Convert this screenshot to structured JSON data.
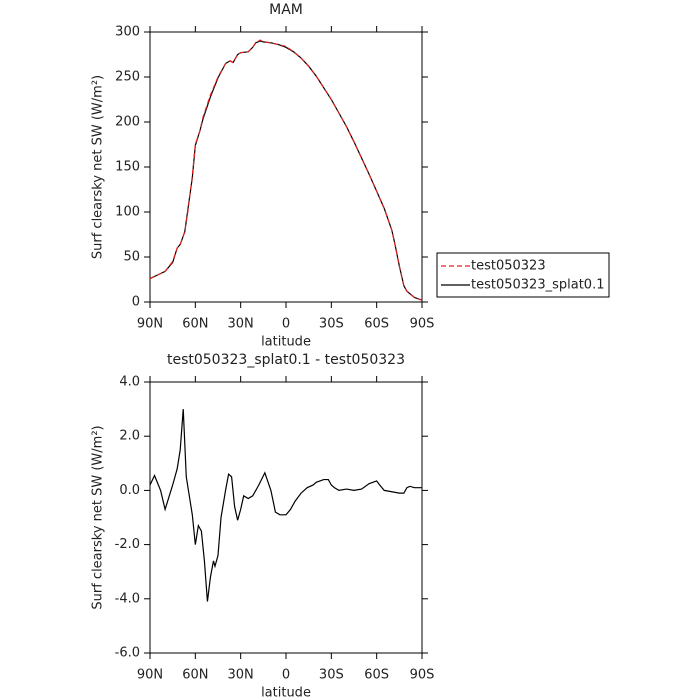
{
  "chart_data": [
    {
      "type": "line",
      "title": "MAM",
      "xlabel": "latitude",
      "ylabel": "Surf clearsky net SW (W/m²)",
      "xlim": [
        90,
        -90
      ],
      "ylim": [
        0,
        300
      ],
      "xticks": [
        {
          "value": 90,
          "label": "90N"
        },
        {
          "value": 60,
          "label": "60N"
        },
        {
          "value": 30,
          "label": "30N"
        },
        {
          "value": 0,
          "label": "0"
        },
        {
          "value": -30,
          "label": "30S"
        },
        {
          "value": -60,
          "label": "60S"
        },
        {
          "value": -90,
          "label": "90S"
        }
      ],
      "yticks": [
        0,
        50,
        100,
        150,
        200,
        250,
        300
      ],
      "legend": "right",
      "x": [
        90,
        85,
        80,
        75,
        72,
        70,
        67,
        65,
        62,
        60,
        57,
        55,
        50,
        45,
        40,
        37,
        35,
        32,
        30,
        25,
        22,
        20,
        17,
        15,
        10,
        5,
        0,
        -5,
        -10,
        -15,
        -20,
        -25,
        -30,
        -35,
        -40,
        -45,
        -50,
        -55,
        -60,
        -65,
        -70,
        -72,
        -75,
        -78,
        -80,
        -85,
        -90
      ],
      "series": [
        {
          "name": "test050323",
          "color": "#e0201b",
          "dash": true,
          "values": [
            26,
            30,
            34,
            45,
            60,
            64,
            78,
            100,
            140,
            175,
            190,
            205,
            230,
            250,
            265,
            268,
            266,
            275,
            277,
            278,
            283,
            288,
            291,
            289,
            288,
            286,
            284,
            278,
            271,
            262,
            251,
            238,
            225,
            210,
            195,
            178,
            160,
            142,
            123,
            104,
            80,
            65,
            40,
            18,
            12,
            5,
            2
          ]
        },
        {
          "name": "test050323_splat0.1",
          "color": "#000000",
          "dash": false,
          "values": [
            26,
            30,
            34,
            44,
            60,
            64,
            78,
            102,
            138,
            174,
            190,
            203,
            228,
            249,
            265,
            268,
            266,
            275,
            277,
            278,
            283,
            288,
            290,
            289,
            288,
            286,
            283,
            278,
            271,
            262,
            251,
            238,
            225,
            210,
            195,
            178,
            160,
            142,
            123,
            104,
            80,
            65,
            40,
            18,
            12,
            5,
            2
          ]
        }
      ]
    },
    {
      "type": "line",
      "title": "test050323_splat0.1 - test050323",
      "xlabel": "latitude",
      "ylabel": "Surf clearsky net SW (W/m²)",
      "xlim": [
        90,
        -90
      ],
      "ylim": [
        -6,
        4
      ],
      "xticks": [
        {
          "value": 90,
          "label": "90N"
        },
        {
          "value": 60,
          "label": "60N"
        },
        {
          "value": 30,
          "label": "30N"
        },
        {
          "value": 0,
          "label": "0"
        },
        {
          "value": -30,
          "label": "30S"
        },
        {
          "value": -60,
          "label": "60S"
        },
        {
          "value": -90,
          "label": "90S"
        }
      ],
      "yticks": [
        {
          "value": -6,
          "label": "-6.0"
        },
        {
          "value": -4,
          "label": "-4.0"
        },
        {
          "value": -2,
          "label": "-2.0"
        },
        {
          "value": 0,
          "label": "0.0"
        },
        {
          "value": 2,
          "label": "2.0"
        },
        {
          "value": 4,
          "label": "4.0"
        }
      ],
      "color": "#000000",
      "x": [
        90,
        87,
        83,
        80,
        75,
        72,
        70,
        68,
        66,
        64,
        62,
        60,
        58,
        56,
        54,
        52,
        50,
        48,
        47,
        45,
        43,
        40,
        38,
        36,
        34,
        32,
        30,
        28,
        25,
        22,
        18,
        14,
        10,
        7,
        4,
        0,
        -3,
        -6,
        -10,
        -14,
        -18,
        -20,
        -25,
        -28,
        -30,
        -32,
        -35,
        -40,
        -45,
        -50,
        -55,
        -60,
        -62,
        -65,
        -70,
        -75,
        -78,
        -80,
        -82,
        -85,
        -90
      ],
      "values": [
        0.2,
        0.55,
        0.0,
        -0.7,
        0.2,
        0.8,
        1.5,
        3.0,
        0.5,
        -0.2,
        -0.9,
        -2.0,
        -1.3,
        -1.5,
        -2.6,
        -4.1,
        -3.2,
        -2.6,
        -2.8,
        -2.4,
        -1.0,
        0.0,
        0.6,
        0.5,
        -0.6,
        -1.1,
        -0.7,
        -0.2,
        -0.3,
        -0.2,
        0.2,
        0.65,
        0.0,
        -0.8,
        -0.9,
        -0.9,
        -0.7,
        -0.4,
        -0.1,
        0.1,
        0.2,
        0.3,
        0.4,
        0.4,
        0.2,
        0.1,
        0.0,
        0.05,
        0.0,
        0.05,
        0.25,
        0.35,
        0.2,
        0.0,
        -0.05,
        -0.1,
        -0.1,
        0.1,
        0.15,
        0.1,
        0.1
      ]
    }
  ]
}
